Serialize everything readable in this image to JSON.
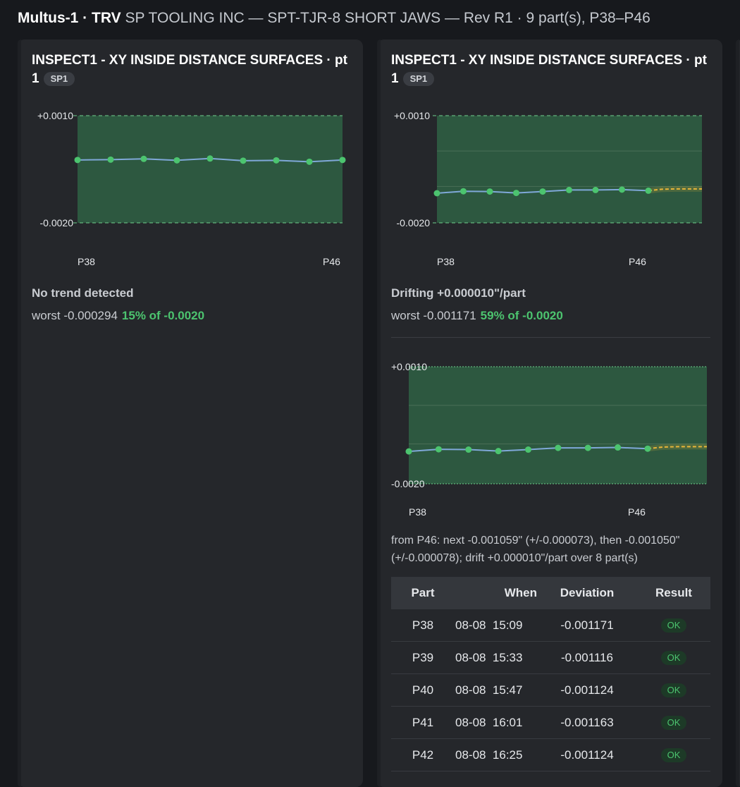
{
  "header": {
    "machine": "Multus-1 · TRV",
    "job": " SP TOOLING INC — SPT-TJR-8 SHORT JAWS — Rev R1 · 9 part(s), P38–P46"
  },
  "cards": [
    {
      "title": "INSPECT1 - XY INSIDE DISTANCE SURFACES · pt 1",
      "badge": "SP1",
      "status": "No trend detected",
      "worst_text": "worst -0.000294",
      "worst_pct": "15% of -0.0020"
    },
    {
      "title": "INSPECT1 - XY INSIDE DISTANCE SURFACES · pt 1",
      "badge": "SP1",
      "status": "Drifting +0.000010\"/part",
      "worst_text": "worst -0.001171",
      "worst_pct": "59% of -0.0020",
      "forecast": "from P46: next -0.001059\" (+/-0.000073), then -0.001050\" (+/-0.000078); drift +0.000010\"/part over 8 part(s)",
      "table": {
        "headers": {
          "part": "Part",
          "when": "When",
          "deviation": "Deviation",
          "result": "Result"
        },
        "rows": [
          {
            "part": "P38",
            "when": "08-08  15:09",
            "deviation": "-0.001171",
            "result": "OK"
          },
          {
            "part": "P39",
            "when": "08-08  15:33",
            "deviation": "-0.001116",
            "result": "OK"
          },
          {
            "part": "P40",
            "when": "08-08  15:47",
            "deviation": "-0.001124",
            "result": "OK"
          },
          {
            "part": "P41",
            "when": "08-08  16:01",
            "deviation": "-0.001163",
            "result": "OK"
          },
          {
            "part": "P42",
            "when": "08-08  16:25",
            "deviation": "-0.001124",
            "result": "OK"
          }
        ]
      }
    }
  ],
  "chart_data": [
    {
      "type": "line",
      "categories": [
        "P38",
        "P39",
        "P40",
        "P41",
        "P42",
        "P43",
        "P44",
        "P45",
        "P46"
      ],
      "values": [
        -0.00024,
        -0.00023,
        -0.00021,
        -0.00025,
        -0.0002,
        -0.00026,
        -0.00025,
        -0.00029,
        -0.00024
      ],
      "ylim": [
        -0.002,
        0.001
      ],
      "ytick_labels": [
        "+0.0010",
        "-0.0020"
      ],
      "xtick_labels": [
        "P38",
        "P46"
      ],
      "band_color": "#2f5e43",
      "line_color": "#7fa8d8",
      "point_color": "#4cc46f"
    },
    {
      "type": "line",
      "categories": [
        "P38",
        "P39",
        "P40",
        "P41",
        "P42",
        "P43",
        "P44",
        "P45",
        "P46"
      ],
      "values": [
        -0.001171,
        -0.001116,
        -0.001124,
        -0.001163,
        -0.001124,
        -0.00108,
        -0.00108,
        -0.00107,
        -0.0011
      ],
      "forecast": [
        -0.001059,
        -0.00105
      ],
      "ylim": [
        -0.002,
        0.001
      ],
      "ytick_labels": [
        "+0.0010",
        "-0.0020"
      ],
      "xtick_labels": [
        "P38",
        "P46"
      ],
      "band_color": "#2f5e43",
      "line_color": "#7fa8d8",
      "point_color": "#4cc46f",
      "forecast_color": "#e8b53a"
    },
    {
      "type": "line",
      "categories": [
        "P38",
        "P39",
        "P40",
        "P41",
        "P42",
        "P43",
        "P44",
        "P45",
        "P46"
      ],
      "values": [
        -0.001171,
        -0.001116,
        -0.001124,
        -0.001163,
        -0.001124,
        -0.00108,
        -0.00108,
        -0.00107,
        -0.0011
      ],
      "forecast": [
        -0.001059,
        -0.00105
      ],
      "ylim": [
        -0.002,
        0.001
      ],
      "ytick_labels": [
        "+0.0010",
        "-0.0020"
      ],
      "xtick_labels": [
        "P38",
        "P46"
      ],
      "band_color": "#2f5e43",
      "line_color": "#7fa8d8",
      "point_color": "#4cc46f",
      "forecast_color": "#e8b53a"
    }
  ]
}
